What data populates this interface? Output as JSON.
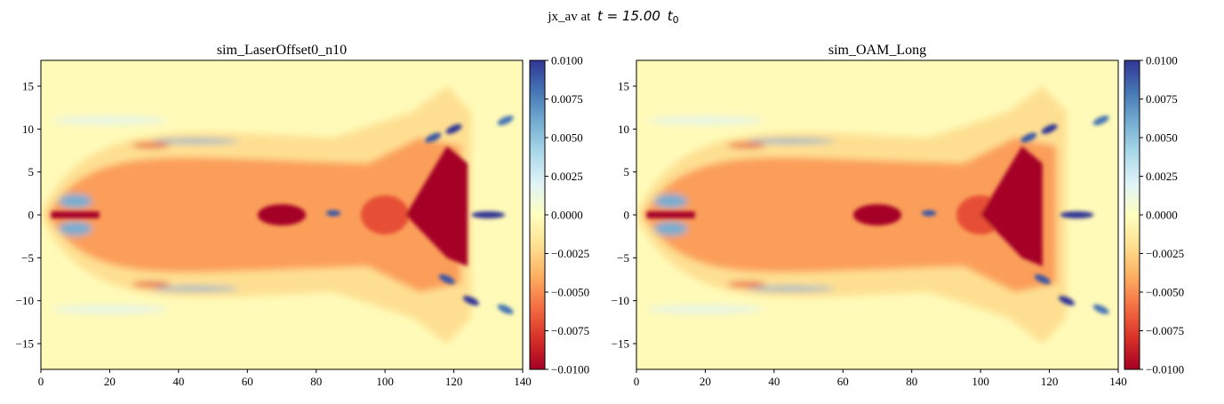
{
  "figure": {
    "suptitle_prefix": "jx_av at",
    "suptitle_math": "t = 15.00",
    "suptitle_unit": "t",
    "suptitle_sub": "0"
  },
  "chart_data": [
    {
      "type": "heatmap",
      "title": "sim_LaserOffset0_n10",
      "colormap": "RdYlBu",
      "xlim": [
        0,
        140
      ],
      "ylim": [
        -18,
        18
      ],
      "xticks": [
        0,
        20,
        40,
        60,
        80,
        100,
        120,
        140
      ],
      "yticks": [
        -15,
        -10,
        -5,
        0,
        5,
        10,
        15
      ],
      "clim": [
        -0.01,
        0.01
      ],
      "cbar_ticks": [
        "0.0100",
        "0.0075",
        "0.0050",
        "0.0025",
        "0.0000",
        "−0.0025",
        "−0.0050",
        "−0.0075",
        "−0.0100"
      ],
      "features": [
        {
          "x": 100,
          "y": 0,
          "v": -0.006,
          "label": "central negative channel"
        },
        {
          "x": 70,
          "y": 0,
          "v": -0.01,
          "label": "dark red core"
        },
        {
          "x": 118,
          "y": 2,
          "v": -0.01,
          "label": "dark red front lobe"
        },
        {
          "x": 130,
          "y": 0,
          "v": 0.01,
          "label": "blue jet at front"
        },
        {
          "x": 10,
          "y": 1.5,
          "v": 0.006,
          "label": "blue lobes at entry"
        },
        {
          "x": 45,
          "y": 8.5,
          "v": 0.006,
          "label": "upper blue sheath"
        },
        {
          "x": 45,
          "y": -8.5,
          "v": 0.006,
          "label": "lower blue sheath"
        }
      ]
    },
    {
      "type": "heatmap",
      "title": "sim_OAM_Long",
      "colormap": "RdYlBu",
      "xlim": [
        0,
        140
      ],
      "ylim": [
        -18,
        18
      ],
      "xticks": [
        0,
        20,
        40,
        60,
        80,
        100,
        120,
        140
      ],
      "yticks": [
        -15,
        -10,
        -5,
        0,
        5,
        10,
        15
      ],
      "clim": [
        -0.01,
        0.01
      ],
      "cbar_ticks": [
        "0.0100",
        "0.0075",
        "0.0050",
        "0.0025",
        "0.0000",
        "−0.0025",
        "−0.0050",
        "−0.0075",
        "−0.0100"
      ],
      "features": [
        {
          "x": 100,
          "y": 0,
          "v": -0.006,
          "label": "central negative channel"
        },
        {
          "x": 70,
          "y": 0,
          "v": -0.01,
          "label": "dark red core"
        },
        {
          "x": 112,
          "y": 2,
          "v": -0.01,
          "label": "dark red front lobe"
        },
        {
          "x": 128,
          "y": 0,
          "v": 0.01,
          "label": "blue jet at front"
        },
        {
          "x": 10,
          "y": 1.5,
          "v": 0.006,
          "label": "blue lobes at entry"
        },
        {
          "x": 45,
          "y": 8.5,
          "v": 0.006,
          "label": "upper blue sheath"
        },
        {
          "x": 45,
          "y": -8.5,
          "v": 0.006,
          "label": "lower blue sheath"
        }
      ]
    }
  ]
}
